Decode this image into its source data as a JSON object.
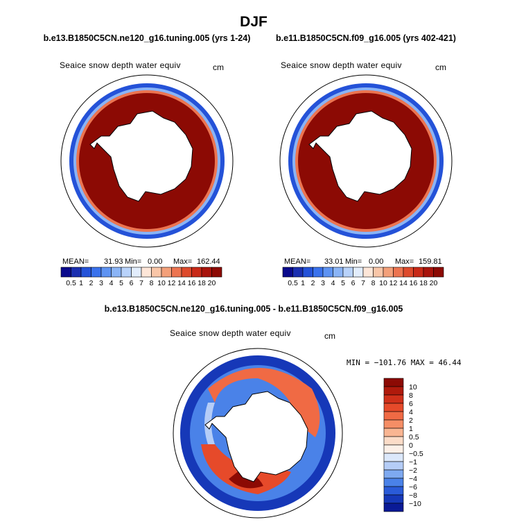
{
  "page": {
    "title": "DJF",
    "left_run": "b.e13.B1850C5CN.ne120_g16.tuning.005 (yrs 1-24)",
    "right_run": "b.e11.B1850C5CN.f09_g16.005 (yrs 402-421)",
    "diff_title": "b.e13.B1850C5CN.ne120_g16.tuning.005 - b.e11.B1850C5CN.f09_g16.005"
  },
  "chart_data": [
    {
      "type": "heatmap",
      "panel": "left",
      "variable": "Seaice snow depth water equiv",
      "units": "cm",
      "stats": {
        "mean_label": "MEAN=",
        "mean": "31.93",
        "min_label": "Min=",
        "min": "0.00",
        "max_label": "Max=",
        "max": "162.44"
      },
      "levels": [
        "0.5",
        "1",
        "2",
        "3",
        "4",
        "5",
        "6",
        "7",
        "8",
        "10",
        "12",
        "14",
        "16",
        "18",
        "20"
      ],
      "colors": [
        "#0a0a8c",
        "#1a2fb0",
        "#2452d8",
        "#3a72ec",
        "#5e93f2",
        "#8ab4f6",
        "#b8d2fa",
        "#e2edfc",
        "#fde6d8",
        "#f9c6a8",
        "#f3a07a",
        "#ec7450",
        "#dd4a2c",
        "#c82a18",
        "#a8140c",
        "#8c0a04"
      ]
    },
    {
      "type": "heatmap",
      "panel": "right",
      "variable": "Seaice snow depth water equiv",
      "units": "cm",
      "stats": {
        "mean_label": "MEAN=",
        "mean": "33.01",
        "min_label": "Min=",
        "min": "0.00",
        "max_label": "Max=",
        "max": "159.81"
      },
      "levels": [
        "0.5",
        "1",
        "2",
        "3",
        "4",
        "5",
        "6",
        "7",
        "8",
        "10",
        "12",
        "14",
        "16",
        "18",
        "20"
      ],
      "colors": [
        "#0a0a8c",
        "#1a2fb0",
        "#2452d8",
        "#3a72ec",
        "#5e93f2",
        "#8ab4f6",
        "#b8d2fa",
        "#e2edfc",
        "#fde6d8",
        "#f9c6a8",
        "#f3a07a",
        "#ec7450",
        "#dd4a2c",
        "#c82a18",
        "#a8140c",
        "#8c0a04"
      ]
    },
    {
      "type": "heatmap",
      "panel": "difference",
      "variable": "Seaice snow depth water equiv",
      "units": "cm",
      "stats_text": "MIN = −101.76 MAX =  46.44",
      "levels": [
        "10",
        "8",
        "6",
        "4",
        "2",
        "1",
        "0.5",
        "0",
        "−0.5",
        "−1",
        "−2",
        "−4",
        "−6",
        "−8",
        "−10"
      ],
      "colors": [
        "#8c0a04",
        "#b01a0c",
        "#d0301a",
        "#e64a2a",
        "#f06a44",
        "#f58e66",
        "#f9b592",
        "#fcdcc8",
        "#fdf0e8",
        "#dce8fb",
        "#b5cdf7",
        "#7ea9f0",
        "#4a82e8",
        "#2a5bd8",
        "#1638b8",
        "#0a1a96"
      ]
    }
  ]
}
